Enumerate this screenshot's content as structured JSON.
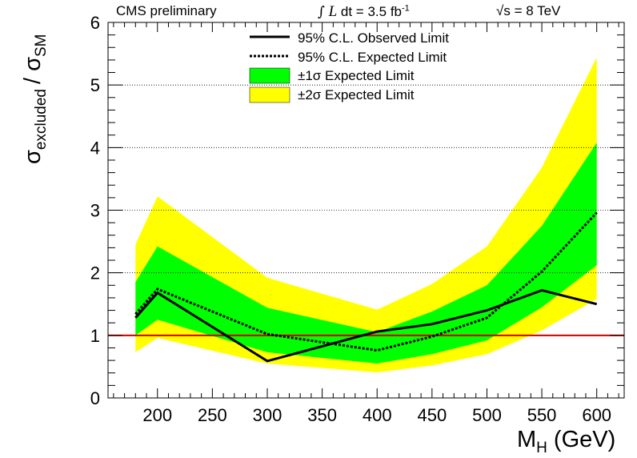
{
  "header": {
    "experiment": "CMS preliminary",
    "lumi_value": "dt = 3.5 fb",
    "lumi_exp": "-1",
    "energy": "s = 8 TeV"
  },
  "chart_data": {
    "type": "line",
    "xlabel_main": "M",
    "xlabel_sub": "H",
    "xlabel_unit": "(GeV)",
    "ylabel_main": "σ",
    "ylabel_sub": "excluded",
    "ylabel_sep": "/ σ",
    "ylabel_sub2": "SM",
    "xlim": [
      155,
      625
    ],
    "ylim": [
      0,
      6
    ],
    "x_ticks": [
      200,
      250,
      300,
      350,
      400,
      450,
      500,
      550,
      600
    ],
    "y_ticks": [
      0,
      1,
      2,
      3,
      4,
      5,
      6
    ],
    "grid": "horizontal dotted",
    "legend_position": "top-center",
    "reference_line": {
      "y": 1,
      "color": "#cc0000"
    },
    "colors": {
      "band1": "#00ff00",
      "band2": "#ffff00",
      "line": "#000000"
    },
    "x": [
      180,
      200,
      300,
      400,
      450,
      500,
      550,
      600
    ],
    "series": [
      {
        "name": "95% C.L. Observed Limit",
        "style": "solid",
        "values": [
          1.28,
          1.68,
          0.59,
          1.06,
          1.18,
          1.4,
          1.72,
          1.5
        ]
      },
      {
        "name": "95% C.L. Expected Limit",
        "style": "dashed",
        "values": [
          1.34,
          1.74,
          1.02,
          0.76,
          0.98,
          1.28,
          2.02,
          2.96
        ]
      }
    ],
    "bands": [
      {
        "name": "±1σ Expected Limit",
        "color": "#00ff00",
        "low": [
          1.0,
          1.25,
          0.73,
          0.55,
          0.7,
          0.92,
          1.45,
          2.12
        ],
        "high": [
          1.85,
          2.42,
          1.44,
          1.05,
          1.38,
          1.8,
          2.75,
          4.08
        ]
      },
      {
        "name": "±2σ Expected Limit",
        "color": "#ffff00",
        "low": [
          0.73,
          0.96,
          0.55,
          0.41,
          0.52,
          0.7,
          1.08,
          1.58
        ],
        "high": [
          2.45,
          3.22,
          1.92,
          1.41,
          1.82,
          2.42,
          3.68,
          5.44
        ]
      }
    ]
  }
}
